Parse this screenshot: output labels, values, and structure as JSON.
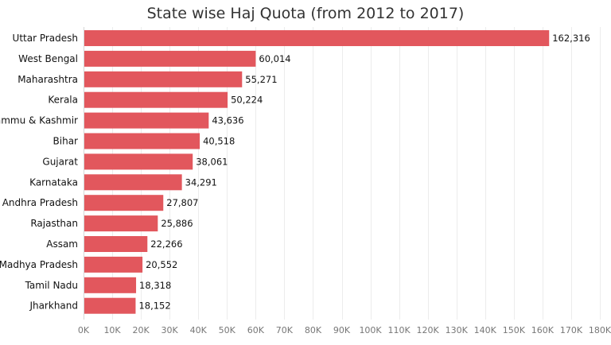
{
  "chart_data": {
    "type": "bar",
    "orientation": "horizontal",
    "title": "State wise Haj Quota (from 2012 to 2017)",
    "xlabel": "",
    "ylabel": "",
    "categories": [
      "Uttar Pradesh",
      "West Bengal",
      "Maharashtra",
      "Kerala",
      "Jammu & Kashmir",
      "Bihar",
      "Gujarat",
      "Karnataka",
      "Andhra Pradesh",
      "Rajasthan",
      "Assam",
      "Madhya Pradesh",
      "Tamil Nadu",
      "Jharkhand"
    ],
    "values": [
      162316,
      60014,
      55271,
      50224,
      43636,
      40518,
      38061,
      34291,
      27807,
      25886,
      22266,
      20552,
      18318,
      18152
    ],
    "value_labels": [
      "162,316",
      "60,014",
      "55,271",
      "50,224",
      "43,636",
      "40,518",
      "38,061",
      "34,291",
      "27,807",
      "25,886",
      "22,266",
      "20,552",
      "18,318",
      "18,152"
    ],
    "xlim": [
      0,
      180000
    ],
    "x_ticks": [
      0,
      10000,
      20000,
      30000,
      40000,
      50000,
      60000,
      70000,
      80000,
      90000,
      100000,
      110000,
      120000,
      130000,
      140000,
      150000,
      160000,
      170000,
      180000
    ],
    "x_tick_labels": [
      "0K",
      "10K",
      "20K",
      "30K",
      "40K",
      "50K",
      "60K",
      "70K",
      "80K",
      "90K",
      "100K",
      "110K",
      "120K",
      "130K",
      "140K",
      "150K",
      "160K",
      "170K",
      "180K"
    ],
    "bar_color": "#e2575d",
    "grid": true,
    "legend": "none"
  }
}
